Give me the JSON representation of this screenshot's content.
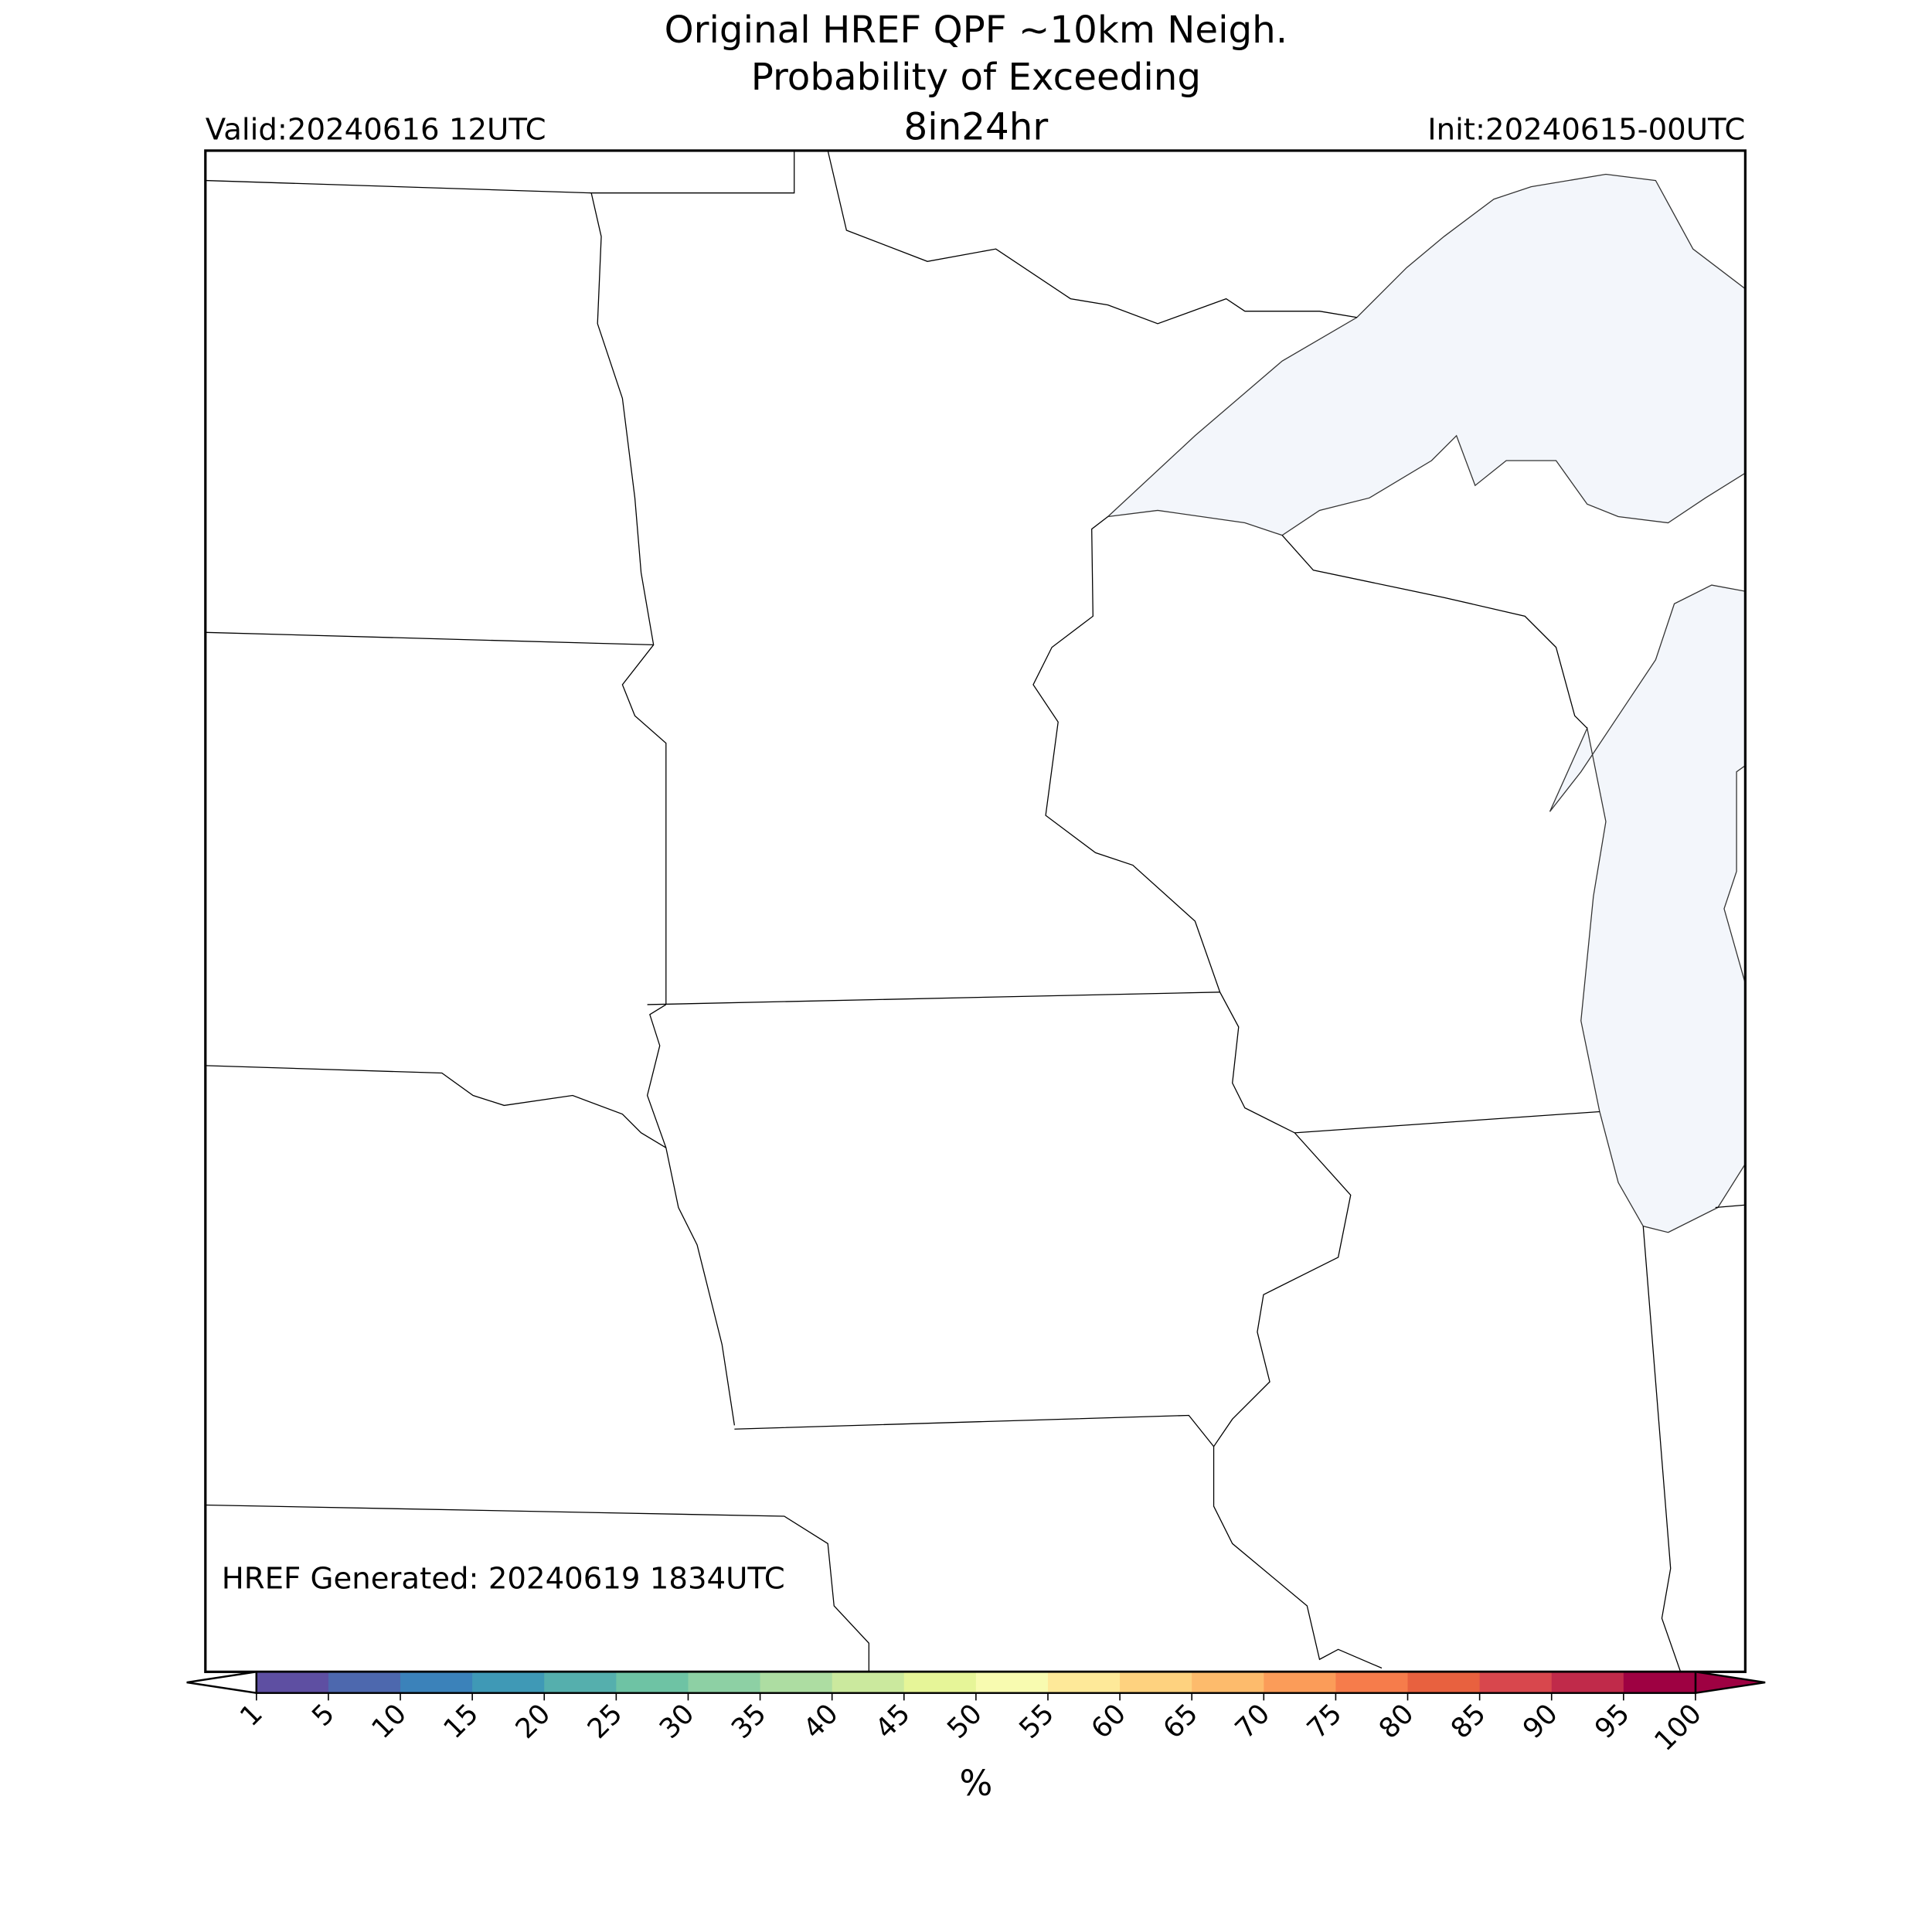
{
  "header": {
    "title": [
      "Original HREF QPF ~10km Neigh.",
      "Probability of Exceeding",
      "8in24hr"
    ],
    "valid": "Valid:20240616 12UTC",
    "init": "Init:20240615-00UTC"
  },
  "map": {
    "annotation": "HREF Generated: 20240619 1834UTC"
  },
  "colorbar": {
    "levels": [
      1,
      5,
      10,
      15,
      20,
      25,
      30,
      35,
      40,
      45,
      50,
      55,
      60,
      65,
      70,
      75,
      80,
      85,
      90,
      95,
      100
    ],
    "colors": [
      "#5e4fa2",
      "#4d68ae",
      "#3b82ba",
      "#3f99b6",
      "#55afad",
      "#6ec3a4",
      "#8dd0a4",
      "#addda2",
      "#cbe99e",
      "#e6f598",
      "#f8fbb0",
      "#fee999",
      "#fed27f",
      "#fdbb6c",
      "#fb9c59",
      "#f67c4b",
      "#e8613f",
      "#d8474d",
      "#c02a4a",
      "#9e0142"
    ],
    "under_color": "#ffffff",
    "over_color": "#9e0142",
    "label": "%"
  }
}
